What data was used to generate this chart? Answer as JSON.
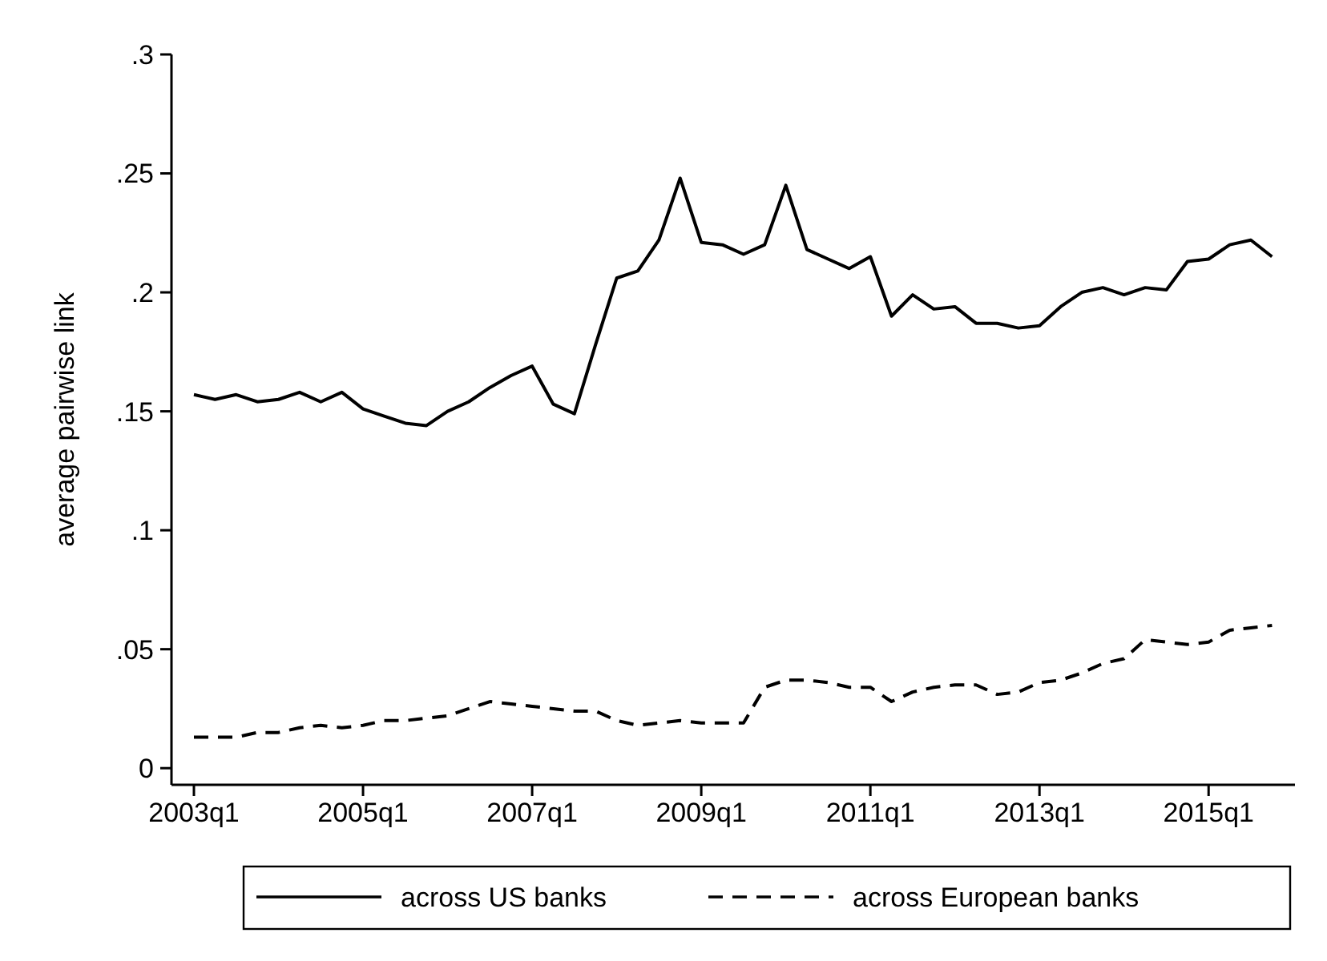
{
  "chart_data": {
    "type": "line",
    "ylabel": "average pairwise link",
    "categories": [
      "2003q1",
      null,
      null,
      null,
      null,
      null,
      null,
      null,
      "2005q1",
      null,
      null,
      null,
      null,
      null,
      null,
      null,
      "2007q1",
      null,
      null,
      null,
      null,
      null,
      null,
      null,
      "2009q1",
      null,
      null,
      null,
      null,
      null,
      null,
      null,
      "2011q1",
      null,
      null,
      null,
      null,
      null,
      null,
      null,
      "2013q1",
      null,
      null,
      null,
      null,
      null,
      null,
      null,
      "2015q1",
      null,
      null,
      null
    ],
    "series": [
      {
        "name": "across US banks",
        "color": "#000000",
        "line_style": "solid",
        "values": [
          0.157,
          0.155,
          0.157,
          0.154,
          0.155,
          0.158,
          0.154,
          0.158,
          0.151,
          0.148,
          0.145,
          0.144,
          0.15,
          0.154,
          0.16,
          0.165,
          0.169,
          0.153,
          0.149,
          0.178,
          0.206,
          0.209,
          0.222,
          0.248,
          0.221,
          0.22,
          0.216,
          0.22,
          0.245,
          0.218,
          0.214,
          0.21,
          0.215,
          0.19,
          0.199,
          0.193,
          0.194,
          0.187,
          0.187,
          0.185,
          0.186,
          0.194,
          0.2,
          0.202,
          0.199,
          0.202,
          0.201,
          0.213,
          0.214,
          0.22,
          0.222,
          0.215
        ]
      },
      {
        "name": "across European banks",
        "color": "#000000",
        "line_style": "dashed",
        "values": [
          0.013,
          0.013,
          0.013,
          0.015,
          0.015,
          0.017,
          0.018,
          0.017,
          0.018,
          0.02,
          0.02,
          0.021,
          0.022,
          0.025,
          0.028,
          0.027,
          0.026,
          0.025,
          0.024,
          0.024,
          0.02,
          0.018,
          0.019,
          0.02,
          0.019,
          0.019,
          0.019,
          0.034,
          0.037,
          0.037,
          0.036,
          0.034,
          0.034,
          0.028,
          0.032,
          0.034,
          0.035,
          0.035,
          0.031,
          0.032,
          0.036,
          0.037,
          0.04,
          0.044,
          0.046,
          0.054,
          0.053,
          0.052,
          0.053,
          0.058,
          0.059,
          0.06
        ]
      }
    ],
    "ylim": [
      -0.007,
      0.3
    ],
    "yticks": [
      {
        "value": 0,
        "label": "0"
      },
      {
        "value": 0.05,
        "label": ".05"
      },
      {
        "value": 0.1,
        "label": ".1"
      },
      {
        "value": 0.15,
        "label": ".15"
      },
      {
        "value": 0.2,
        "label": ".2"
      },
      {
        "value": 0.25,
        "label": ".25"
      },
      {
        "value": 0.3,
        "label": ".3"
      }
    ],
    "legend": "bottom",
    "grid": false,
    "marker": "none"
  }
}
